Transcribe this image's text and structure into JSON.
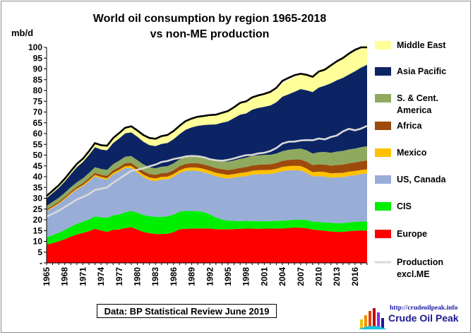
{
  "chart_data": {
    "type": "area",
    "title": "World oil consumption by region 1965-2018",
    "subtitle": "vs non-ME production",
    "ylabel": "mb/d",
    "xlabel": "",
    "ylim": [
      0,
      100
    ],
    "yticks": [
      0,
      5,
      10,
      15,
      20,
      25,
      30,
      35,
      40,
      45,
      50,
      55,
      60,
      65,
      70,
      75,
      80,
      85,
      90,
      95,
      100
    ],
    "ytick_labels": [
      "-",
      "5",
      "10",
      "15",
      "20",
      "25",
      "30",
      "35",
      "40",
      "45",
      "50",
      "55",
      "60",
      "65",
      "70",
      "75",
      "80",
      "85",
      "90",
      "95",
      "100"
    ],
    "xticks": [
      1965,
      1968,
      1971,
      1974,
      1977,
      1980,
      1983,
      1986,
      1989,
      1992,
      1995,
      1998,
      2001,
      2004,
      2007,
      2010,
      2013,
      2016
    ],
    "grid": false,
    "legend_position": "right",
    "stacked": true,
    "x": [
      1965,
      1966,
      1967,
      1968,
      1969,
      1970,
      1971,
      1972,
      1973,
      1974,
      1975,
      1976,
      1977,
      1978,
      1979,
      1980,
      1981,
      1982,
      1983,
      1984,
      1985,
      1986,
      1987,
      1988,
      1989,
      1990,
      1991,
      1992,
      1993,
      1994,
      1995,
      1996,
      1997,
      1998,
      1999,
      2000,
      2001,
      2002,
      2003,
      2004,
      2005,
      2006,
      2007,
      2008,
      2009,
      2010,
      2011,
      2012,
      2013,
      2014,
      2015,
      2016,
      2017,
      2018
    ],
    "series": [
      {
        "name": "Europe",
        "color": "#ff0000",
        "values": [
          8.5,
          9.2,
          10.0,
          11.0,
          12.2,
          13.2,
          13.9,
          14.7,
          15.8,
          15.1,
          14.4,
          15.4,
          15.5,
          16.2,
          16.6,
          15.5,
          14.4,
          13.8,
          13.4,
          13.4,
          13.5,
          14.3,
          15.6,
          15.8,
          15.9,
          16.0,
          16.0,
          16.0,
          15.6,
          15.6,
          15.6,
          15.7,
          15.8,
          15.9,
          15.9,
          15.8,
          15.9,
          15.9,
          15.9,
          16.0,
          16.2,
          16.4,
          16.3,
          16.1,
          15.5,
          15.2,
          14.9,
          14.6,
          14.4,
          14.4,
          14.7,
          14.9,
          15.1,
          15.0
        ]
      },
      {
        "name": "CIS",
        "color": "#00ee00",
        "values": [
          3.4,
          3.7,
          4.0,
          4.3,
          4.6,
          4.9,
          5.2,
          5.5,
          5.8,
          6.1,
          6.5,
          6.7,
          7.0,
          7.3,
          7.6,
          7.8,
          7.8,
          7.9,
          8.0,
          8.0,
          8.1,
          8.1,
          8.2,
          8.3,
          8.2,
          8.0,
          7.6,
          6.5,
          5.5,
          4.5,
          4.0,
          3.8,
          3.6,
          3.6,
          3.5,
          3.5,
          3.5,
          3.5,
          3.6,
          3.6,
          3.6,
          3.7,
          3.7,
          3.8,
          3.7,
          3.8,
          3.9,
          4.0,
          4.0,
          4.1,
          4.1,
          4.1,
          4.1,
          4.2
        ]
      },
      {
        "name": "US, Canada",
        "color": "#98aed6",
        "values": [
          12.0,
          12.7,
          13.3,
          14.2,
          15.1,
          15.9,
          16.5,
          17.6,
          18.6,
          18.0,
          17.7,
          18.9,
          19.9,
          20.5,
          19.8,
          18.5,
          17.6,
          16.7,
          16.6,
          17.3,
          17.2,
          17.6,
          17.9,
          18.6,
          18.8,
          18.7,
          18.4,
          18.7,
          19.1,
          19.5,
          19.6,
          20.1,
          20.6,
          20.8,
          21.5,
          21.8,
          21.8,
          21.9,
          22.3,
          23.0,
          23.1,
          22.9,
          22.9,
          21.8,
          20.9,
          21.3,
          21.3,
          20.9,
          21.3,
          21.3,
          21.6,
          21.7,
          22.0,
          22.4
        ]
      },
      {
        "name": "Mexico",
        "color": "#ffc000",
        "values": [
          0.35,
          0.38,
          0.4,
          0.43,
          0.46,
          0.5,
          0.52,
          0.57,
          0.62,
          0.66,
          0.7,
          0.76,
          0.8,
          0.88,
          0.98,
          1.1,
          1.2,
          1.25,
          1.2,
          1.2,
          1.25,
          1.25,
          1.3,
          1.33,
          1.4,
          1.5,
          1.6,
          1.6,
          1.62,
          1.7,
          1.62,
          1.64,
          1.7,
          1.78,
          1.85,
          1.92,
          1.9,
          1.85,
          1.9,
          1.95,
          2.0,
          2.03,
          2.05,
          2.07,
          2.0,
          2.05,
          2.07,
          2.07,
          2.04,
          1.96,
          1.92,
          1.95,
          1.9,
          1.8
        ]
      },
      {
        "name": "Africa",
        "color": "#9e4a0c",
        "values": [
          0.6,
          0.65,
          0.68,
          0.72,
          0.77,
          0.82,
          0.87,
          0.93,
          1.0,
          1.05,
          1.1,
          1.2,
          1.28,
          1.38,
          1.44,
          1.5,
          1.57,
          1.63,
          1.68,
          1.72,
          1.76,
          1.8,
          1.86,
          1.93,
          1.98,
          2.02,
          2.07,
          2.1,
          2.14,
          2.2,
          2.25,
          2.3,
          2.36,
          2.42,
          2.47,
          2.5,
          2.55,
          2.6,
          2.7,
          2.8,
          2.9,
          2.95,
          3.05,
          3.2,
          3.3,
          3.4,
          3.45,
          3.55,
          3.7,
          3.8,
          3.9,
          3.95,
          4.05,
          4.15
        ]
      },
      {
        "name": "S. & Cent. America",
        "color": "#8faa5e",
        "values": [
          1.6,
          1.7,
          1.8,
          1.9,
          2.0,
          2.1,
          2.25,
          2.4,
          2.55,
          2.7,
          2.75,
          2.85,
          2.95,
          3.05,
          3.15,
          3.25,
          3.15,
          3.1,
          3.0,
          3.0,
          3.05,
          3.15,
          3.2,
          3.25,
          3.3,
          3.3,
          3.4,
          3.5,
          3.6,
          3.75,
          3.9,
          4.0,
          4.2,
          4.35,
          4.4,
          4.4,
          4.45,
          4.4,
          4.35,
          4.5,
          4.65,
          4.8,
          5.05,
          5.3,
          5.35,
          5.6,
          5.85,
          6.0,
          6.2,
          6.4,
          6.4,
          6.45,
          6.55,
          6.6
        ]
      },
      {
        "name": "Asia Pacific",
        "color": "#0c2464",
        "values": [
          3.6,
          4.1,
          4.6,
          5.2,
          6.0,
          7.0,
          7.6,
          8.4,
          9.3,
          9.0,
          9.1,
          9.8,
          10.3,
          10.8,
          11.0,
          10.9,
          10.5,
          10.3,
          10.3,
          10.6,
          10.8,
          11.2,
          11.7,
          12.6,
          13.3,
          14.1,
          14.9,
          15.8,
          16.7,
          17.8,
          18.7,
          19.7,
          20.5,
          20.5,
          21.5,
          22.0,
          22.3,
          22.9,
          23.8,
          25.3,
          25.8,
          26.6,
          27.6,
          27.8,
          28.5,
          30.0,
          30.8,
          32.2,
          33.1,
          33.9,
          34.8,
          35.9,
          36.9,
          37.8
        ]
      },
      {
        "name": "Middle East",
        "color": "#ffff99",
        "values": [
          1.0,
          1.1,
          1.2,
          1.3,
          1.4,
          1.5,
          1.6,
          1.7,
          1.9,
          2.0,
          2.1,
          2.3,
          2.5,
          2.6,
          2.8,
          2.9,
          3.1,
          3.3,
          3.4,
          3.6,
          3.7,
          3.8,
          3.9,
          4.0,
          4.1,
          4.2,
          4.2,
          4.4,
          4.5,
          4.6,
          4.8,
          5.0,
          5.1,
          5.2,
          5.3,
          5.4,
          5.6,
          5.8,
          6.0,
          6.3,
          6.6,
          6.8,
          7.1,
          7.5,
          7.8,
          8.1,
          8.3,
          8.6,
          8.8,
          9.1,
          9.3,
          9.4,
          9.5,
          9.5
        ]
      }
    ],
    "line_series": [
      {
        "name": "Production excl.ME",
        "color": "#d9d9d9",
        "values": [
          21.5,
          22.8,
          24.2,
          25.9,
          27.6,
          29.4,
          30.6,
          31.9,
          33.8,
          34.4,
          35.0,
          37.2,
          39.0,
          40.9,
          42.7,
          43.2,
          43.9,
          44.8,
          45.6,
          46.8,
          47.3,
          48.2,
          48.7,
          49.4,
          49.6,
          49.5,
          49.0,
          48.1,
          47.6,
          47.4,
          47.8,
          48.5,
          49.3,
          50.0,
          50.1,
          50.8,
          51.1,
          51.9,
          53.3,
          55.4,
          56.2,
          56.3,
          56.8,
          57.0,
          56.9,
          57.7,
          57.3,
          58.4,
          59.1,
          61.0,
          62.2,
          61.5,
          62.3,
          63.6
        ]
      },
      {
        "name": "World total",
        "color": "#000000",
        "values": [
          31.05,
          33.53,
          35.98,
          39.05,
          42.53,
          45.92,
          48.34,
          51.8,
          55.57,
          54.61,
          54.35,
          57.91,
          60.23,
          62.71,
          63.37,
          61.45,
          59.32,
          57.98,
          57.58,
          58.82,
          59.36,
          61.2,
          63.66,
          65.81,
          66.98,
          67.82,
          68.17,
          68.6,
          68.76,
          69.65,
          70.47,
          72.24,
          74.26,
          74.95,
          76.82,
          77.72,
          78.4,
          79.35,
          81.25,
          84.45,
          85.85,
          87.08,
          87.75,
          87.27,
          86.35,
          88.75,
          89.67,
          91.62,
          93.54,
          95.06,
          97.12,
          98.85,
          100.0,
          101.45
        ]
      }
    ]
  },
  "legend": [
    {
      "label": "Middle East",
      "color": "#ffff99",
      "kind": "swatch"
    },
    {
      "label": "Asia Pacific",
      "color": "#0c2464",
      "kind": "swatch"
    },
    {
      "label": "S. & Cent.\nAmerica",
      "color": "#8faa5e",
      "kind": "swatch"
    },
    {
      "label": "Africa",
      "color": "#9e4a0c",
      "kind": "swatch"
    },
    {
      "label": "Mexico",
      "color": "#ffc000",
      "kind": "swatch"
    },
    {
      "label": "US, Canada",
      "color": "#98aed6",
      "kind": "swatch"
    },
    {
      "label": "CIS",
      "color": "#00ee00",
      "kind": "swatch"
    },
    {
      "label": "Europe",
      "color": "#ff0000",
      "kind": "swatch"
    },
    {
      "label": "Production\nexcl.ME",
      "color": "#d9d9d9",
      "kind": "line"
    }
  ],
  "source": "Data: BP Statistical Review June 2019",
  "logo": {
    "url": "http://crudeoilpeak.info",
    "name": "Crude Oil Peak"
  }
}
